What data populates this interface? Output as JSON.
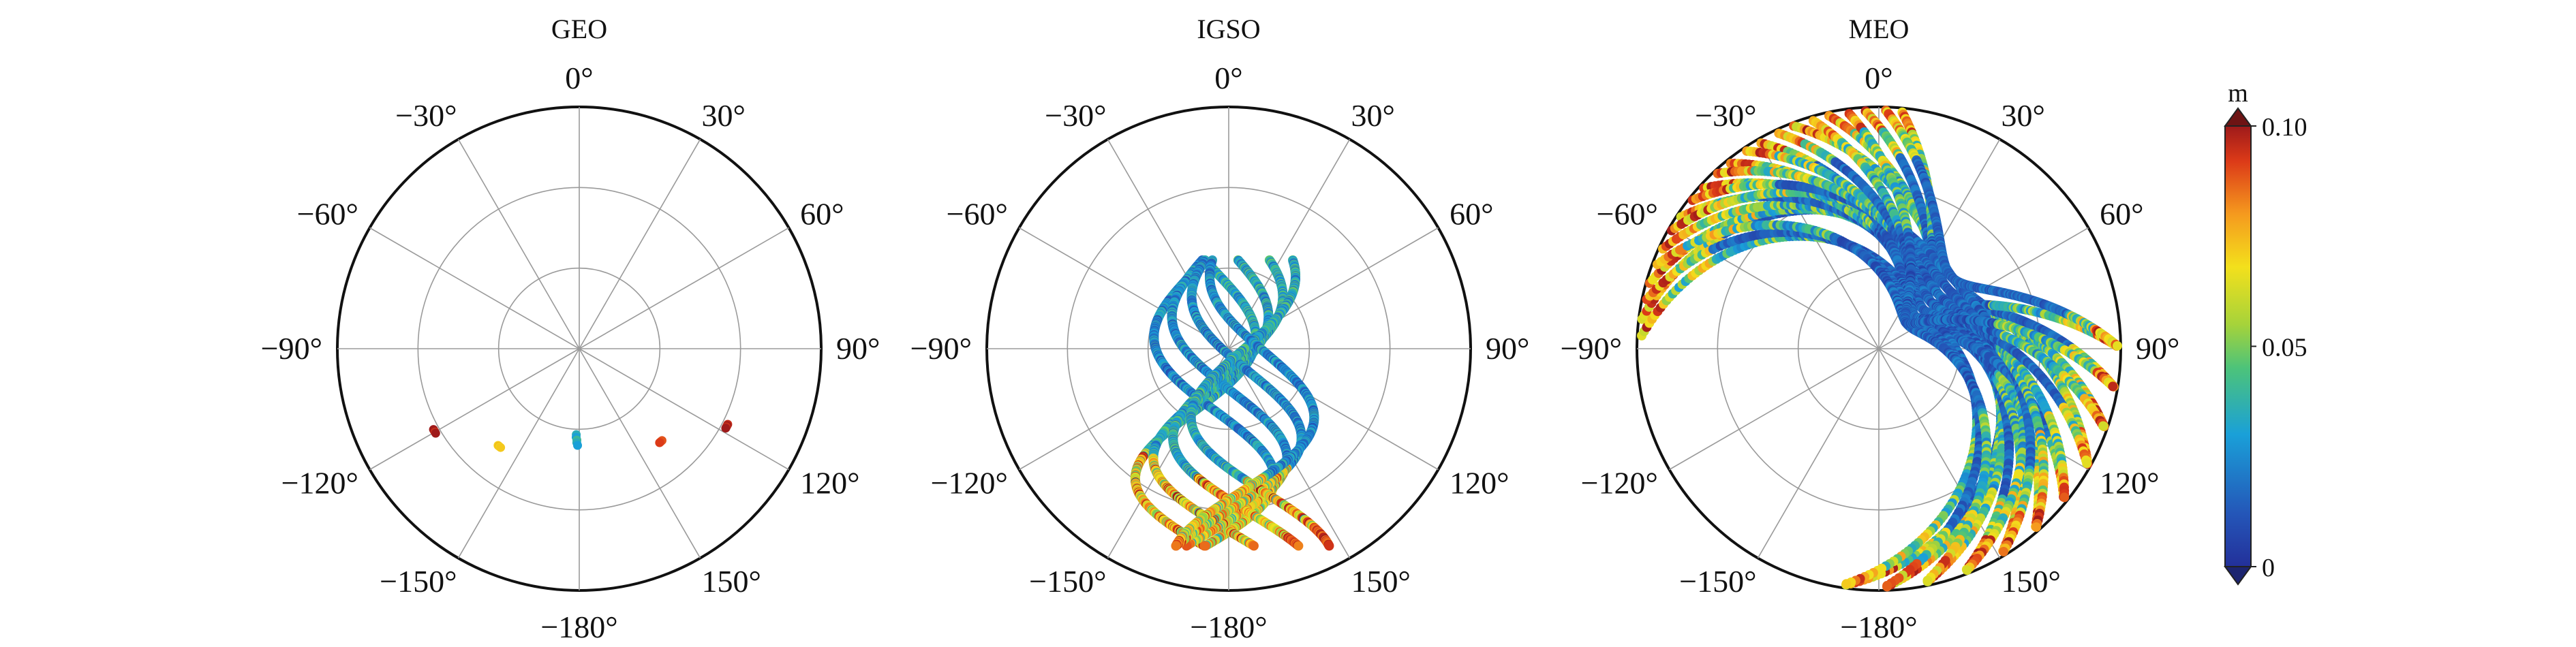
{
  "chart_data": [
    {
      "type": "scatter",
      "subtype": "polar skyplot",
      "title": "GEO",
      "azimuth_tick_labels": [
        "0°",
        "30°",
        "60°",
        "90°",
        "120°",
        "150°",
        "−180°",
        "−150°",
        "−120°",
        "−90°",
        "−60°",
        "−30°"
      ],
      "azimuth_ticks": [
        0,
        30,
        60,
        90,
        120,
        150,
        180,
        210,
        240,
        270,
        300,
        330
      ],
      "radial_rings": 3,
      "grid": true,
      "series": [
        {
          "azimuth": [
            -119,
            -119.5,
            -120,
            -120.5
          ],
          "elevation": [
            28,
            28,
            28,
            28
          ],
          "value": [
            0.1,
            0.1,
            0.095,
            0.1
          ]
        },
        {
          "azimuth": [
            -140,
            -140.5,
            -141,
            -141.5
          ],
          "elevation": [
            43,
            43,
            43,
            43
          ],
          "value": [
            0.07,
            0.075,
            0.07,
            0.072
          ]
        },
        {
          "azimuth": [
            -178,
            -178,
            -178.5,
            -178.5,
            -179
          ],
          "elevation": [
            58,
            57,
            56,
            55,
            54
          ],
          "value": [
            0.035,
            0.03,
            0.04,
            0.035,
            0.03
          ]
        },
        {
          "azimuth": [
            138,
            138.5,
            139,
            139.5
          ],
          "elevation": [
            44,
            44,
            44,
            44
          ],
          "value": [
            0.09,
            0.088,
            0.09,
            0.092
          ]
        },
        {
          "azimuth": [
            117,
            117.5,
            118,
            118.5
          ],
          "elevation": [
            28,
            28,
            28,
            28
          ],
          "value": [
            0.095,
            0.1,
            0.095,
            0.1
          ]
        }
      ]
    },
    {
      "type": "scatter",
      "subtype": "polar skyplot",
      "title": "IGSO",
      "azimuth_tick_labels": [
        "0°",
        "30°",
        "60°",
        "90°",
        "120°",
        "150°",
        "−180°",
        "−150°",
        "−120°",
        "−90°",
        "−60°",
        "−30°"
      ],
      "azimuth_ticks": [
        0,
        30,
        60,
        90,
        120,
        150,
        180,
        210,
        240,
        270,
        300,
        330
      ],
      "radial_rings": 3,
      "grid": true,
      "track_groundtrack": "figure-eight",
      "value_range": [
        0,
        0.1
      ]
    },
    {
      "type": "scatter",
      "subtype": "polar skyplot",
      "title": "MEO",
      "azimuth_tick_labels": [
        "0°",
        "30°",
        "60°",
        "90°",
        "120°",
        "150°",
        "−180°",
        "−150°",
        "−120°",
        "−90°",
        "−60°",
        "−30°"
      ],
      "azimuth_ticks": [
        0,
        30,
        60,
        90,
        120,
        150,
        180,
        210,
        240,
        270,
        300,
        330
      ],
      "radial_rings": 3,
      "grid": true,
      "value_range": [
        0,
        0.1
      ]
    }
  ],
  "colorbar": {
    "unit": "m",
    "min": 0,
    "max": 0.1,
    "tick_labels": [
      "0",
      "0.05",
      "0.10"
    ],
    "ticks": [
      0,
      0.05,
      0.1
    ],
    "colormap": "jet",
    "extend": "both"
  }
}
